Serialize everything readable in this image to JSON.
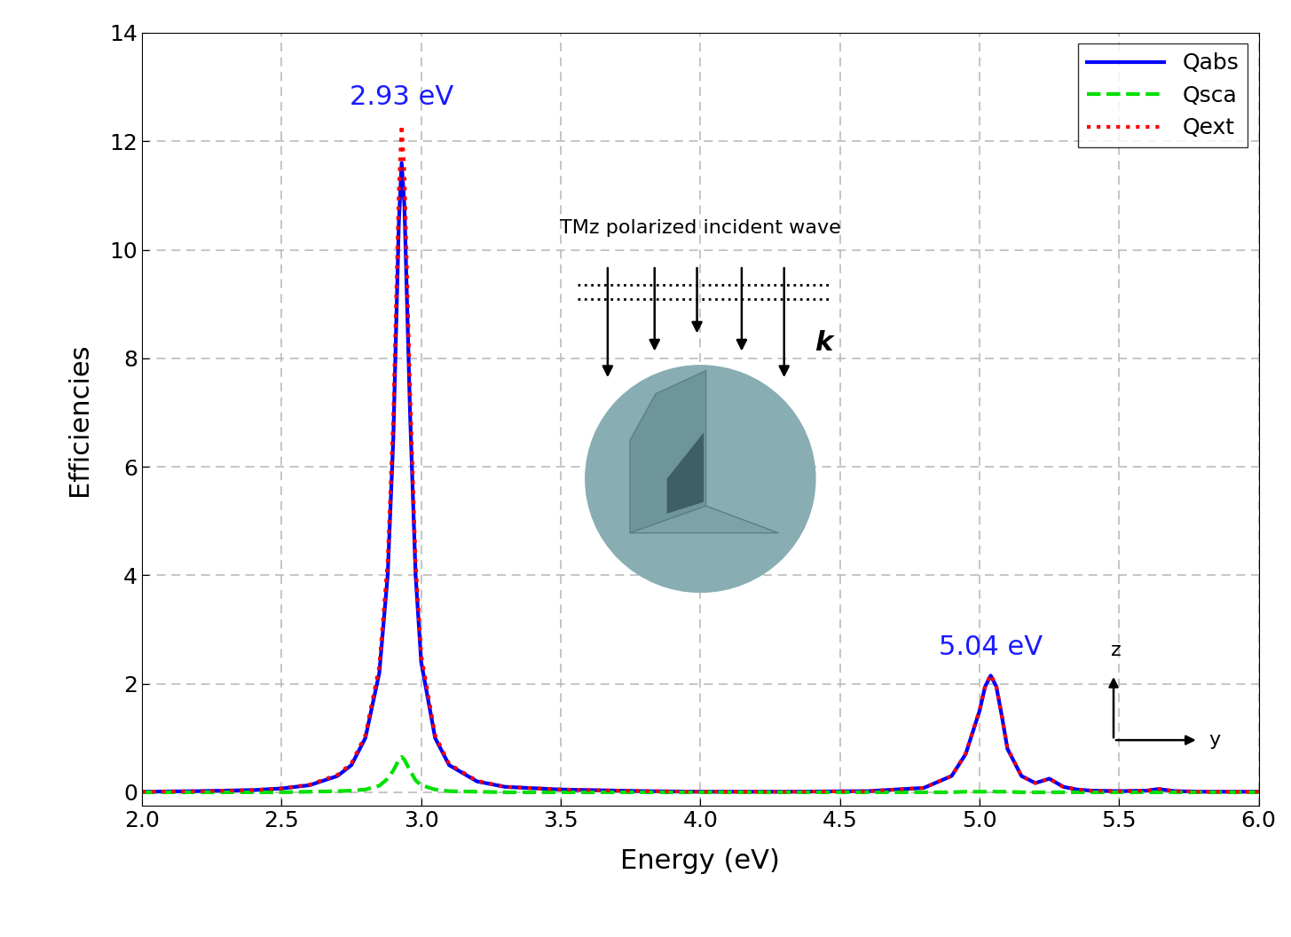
{
  "chart_data": {
    "type": "line",
    "xlabel": "Energy (eV)",
    "ylabel": "Efficiencies",
    "x": [
      2.0,
      2.2,
      2.4,
      2.5,
      2.6,
      2.7,
      2.75,
      2.8,
      2.85,
      2.88,
      2.9,
      2.92,
      2.93,
      2.94,
      2.96,
      2.98,
      3.0,
      3.05,
      3.1,
      3.2,
      3.3,
      3.5,
      3.8,
      4.0,
      4.3,
      4.6,
      4.8,
      4.9,
      4.95,
      5.0,
      5.02,
      5.04,
      5.06,
      5.08,
      5.1,
      5.15,
      5.2,
      5.25,
      5.3,
      5.35,
      5.4,
      5.5,
      5.6,
      5.64,
      5.7,
      5.8,
      6.0
    ],
    "series": [
      {
        "name": "Qabs",
        "color": "#0000ff",
        "line_style": "solid",
        "values": [
          0.01,
          0.02,
          0.04,
          0.07,
          0.13,
          0.3,
          0.5,
          1.0,
          2.2,
          4.0,
          6.5,
          10.5,
          11.6,
          10.8,
          7.0,
          4.0,
          2.4,
          1.0,
          0.5,
          0.2,
          0.1,
          0.05,
          0.02,
          0.01,
          0.01,
          0.02,
          0.08,
          0.3,
          0.7,
          1.5,
          1.95,
          2.15,
          1.95,
          1.4,
          0.8,
          0.3,
          0.17,
          0.25,
          0.1,
          0.05,
          0.03,
          0.02,
          0.03,
          0.06,
          0.02,
          0.01,
          0.01
        ]
      },
      {
        "name": "Qsca",
        "color": "#00e000",
        "line_style": "dashed",
        "values": [
          0,
          0,
          0,
          0,
          0.01,
          0.02,
          0.03,
          0.05,
          0.12,
          0.25,
          0.4,
          0.6,
          0.65,
          0.6,
          0.4,
          0.22,
          0.13,
          0.05,
          0.02,
          0.01,
          0,
          0,
          0,
          0,
          0,
          0,
          0,
          0,
          0.01,
          0.01,
          0.01,
          0.02,
          0.01,
          0.01,
          0.01,
          0,
          0,
          0,
          0,
          0,
          0,
          0,
          0,
          0,
          0,
          0,
          0
        ]
      },
      {
        "name": "Qext",
        "color": "#ff0000",
        "line_style": "dotted",
        "values": [
          0.01,
          0.02,
          0.04,
          0.07,
          0.14,
          0.32,
          0.53,
          1.05,
          2.32,
          4.25,
          6.9,
          11.1,
          12.3,
          11.4,
          7.4,
          4.22,
          2.53,
          1.05,
          0.52,
          0.21,
          0.1,
          0.05,
          0.02,
          0.01,
          0.01,
          0.02,
          0.08,
          0.3,
          0.71,
          1.51,
          1.96,
          2.17,
          1.96,
          1.41,
          0.81,
          0.3,
          0.17,
          0.25,
          0.1,
          0.05,
          0.03,
          0.02,
          0.03,
          0.06,
          0.02,
          0.01,
          0.01
        ]
      }
    ],
    "xlim": [
      2.0,
      6.0
    ],
    "xticks": [
      2.0,
      2.5,
      3.0,
      3.5,
      4.0,
      4.5,
      5.0,
      5.5,
      6.0
    ],
    "ylim": [
      -0.25,
      14
    ],
    "yticks": [
      0,
      2,
      4,
      6,
      8,
      10,
      12,
      14
    ],
    "grid": true,
    "legend": "upper right",
    "annotations": [
      {
        "text": "2.93 eV",
        "x": 2.93
      },
      {
        "text": "5.04 eV",
        "x": 5.04
      }
    ],
    "inset_texts": {
      "caption": "TMz polarized incident wave",
      "wave_vector": "k",
      "axis_up": "z",
      "axis_right": "y"
    }
  }
}
